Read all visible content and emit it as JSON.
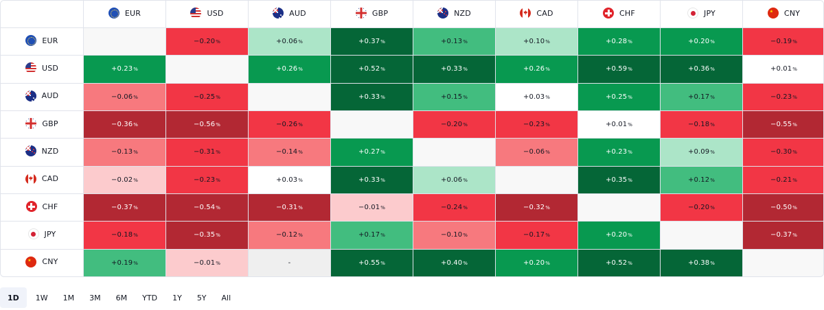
{
  "currencies": [
    "EUR",
    "USD",
    "AUD",
    "GBP",
    "NZD",
    "CAD",
    "CHF",
    "JPY",
    "CNY"
  ],
  "flag_icons": [
    "eu-flag-icon",
    "us-flag-icon",
    "au-flag-icon",
    "gb-flag-icon",
    "nz-flag-icon",
    "ca-flag-icon",
    "ch-flag-icon",
    "jp-flag-icon",
    "cn-flag-icon"
  ],
  "percent_symbol": "%",
  "empty_value": "-",
  "rows": [
    [
      "",
      "−0.20",
      "+0.06",
      "+0.37",
      "+0.13",
      "+0.10",
      "+0.28",
      "+0.20",
      "−0.19"
    ],
    [
      "+0.23",
      "",
      "+0.26",
      "+0.52",
      "+0.33",
      "+0.26",
      "+0.59",
      "+0.36",
      "+0.01"
    ],
    [
      "−0.06",
      "−0.25",
      "",
      "+0.33",
      "+0.15",
      "+0.03",
      "+0.25",
      "+0.17",
      "−0.23"
    ],
    [
      "−0.36",
      "−0.56",
      "−0.26",
      "",
      "−0.20",
      "−0.23",
      "+0.01",
      "−0.18",
      "−0.55"
    ],
    [
      "−0.13",
      "−0.31",
      "−0.14",
      "+0.27",
      "",
      "−0.06",
      "+0.23",
      "+0.09",
      "−0.30"
    ],
    [
      "−0.02",
      "−0.23",
      "+0.03",
      "+0.33",
      "+0.06",
      "",
      "+0.35",
      "+0.12",
      "−0.21"
    ],
    [
      "−0.37",
      "−0.54",
      "−0.31",
      "−0.01",
      "−0.24",
      "−0.32",
      "",
      "−0.20",
      "−0.50"
    ],
    [
      "−0.18",
      "−0.35",
      "−0.12",
      "+0.17",
      "−0.10",
      "−0.17",
      "+0.20",
      "",
      "−0.37"
    ],
    [
      "+0.19",
      "−0.01",
      "-",
      "+0.55",
      "+0.40",
      "+0.20",
      "+0.52",
      "+0.38",
      ""
    ]
  ],
  "cell_colors": [
    [
      "diag",
      "r2",
      "g0",
      "g3",
      "g1",
      "g0",
      "g2",
      "g2",
      "r2"
    ],
    [
      "g2",
      "diag",
      "g2",
      "g3",
      "g3",
      "g2",
      "g3",
      "g3",
      "n0"
    ],
    [
      "r1",
      "r2",
      "diag",
      "g3",
      "g1",
      "n0",
      "g2",
      "g1",
      "r2"
    ],
    [
      "r3",
      "r3",
      "r2",
      "diag",
      "r2",
      "r2",
      "n0",
      "r2",
      "r3"
    ],
    [
      "r1",
      "r2",
      "r1",
      "g2",
      "diag",
      "r1",
      "g2",
      "g0",
      "r2"
    ],
    [
      "r0",
      "r2",
      "n0",
      "g3",
      "g0",
      "diag",
      "g3",
      "g1",
      "r2"
    ],
    [
      "r3",
      "r3",
      "r3",
      "r0",
      "r2",
      "r3",
      "diag",
      "r2",
      "r3"
    ],
    [
      "r2",
      "r3",
      "r1",
      "g1",
      "r1",
      "r2",
      "g2",
      "diag",
      "r3"
    ],
    [
      "g1",
      "r0",
      "empty",
      "g3",
      "g3",
      "g2",
      "g3",
      "g3",
      "diag"
    ]
  ],
  "color_legend": {
    "g3": "#056637",
    "g2": "#089950",
    "g1": "#42bd7f",
    "g0": "#ace5c8",
    "n0": "#ffffff",
    "r0": "#fccbcd",
    "r1": "#f7797e",
    "r2": "#f23645",
    "r3": "#b22833",
    "diag": "#f8f8f8",
    "empty": "#efefef"
  },
  "periods": [
    "1D",
    "1W",
    "1M",
    "3M",
    "6M",
    "YTD",
    "1Y",
    "5Y",
    "All"
  ],
  "active_period": "1D"
}
